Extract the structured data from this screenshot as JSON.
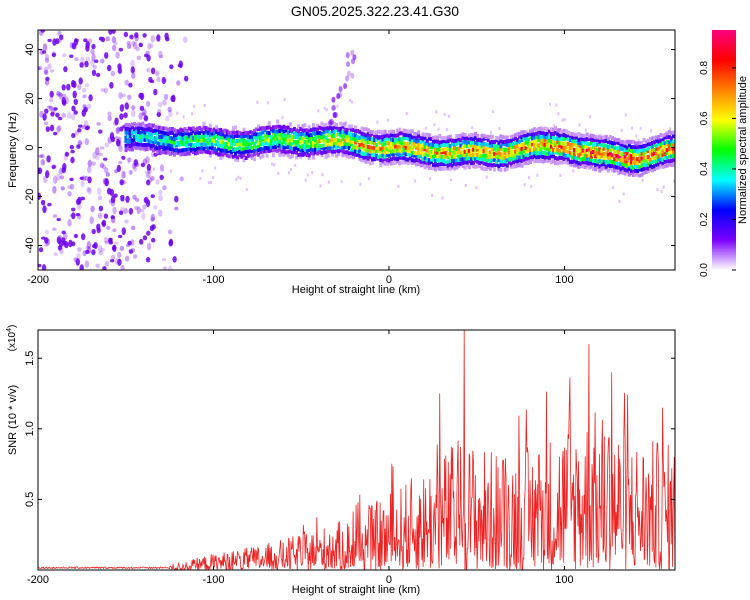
{
  "title": "GN05.2025.322.23.41.G30",
  "chart_data": [
    {
      "type": "heatmap",
      "xlabel": "Height of straight line (km)",
      "ylabel": "Frequency (Hz)",
      "xlim": [
        -200,
        163
      ],
      "ylim": [
        -50,
        48
      ],
      "x_ticks": [
        "-200",
        "-100",
        "0",
        "100"
      ],
      "y_ticks": [
        "40",
        "20",
        "0",
        "-20",
        "-40"
      ],
      "colorbar": {
        "label": "Normalized spectral amplitude",
        "range": [
          0,
          0.95
        ],
        "ticks": [
          "0.0",
          "0.2",
          "0.4",
          "0.6",
          "0.8"
        ],
        "colors": [
          "#ffffff",
          "#7a00ff",
          "#0000ff",
          "#00ffff",
          "#00ff00",
          "#ffff00",
          "#ff8000",
          "#ff0000",
          "#ff0080"
        ]
      },
      "noise_region_x": [
        -200,
        -120
      ],
      "ridge": {
        "x": [
          -145,
          -120,
          -100,
          -80,
          -60,
          -40,
          -20,
          0,
          20,
          40,
          60,
          80,
          100,
          120,
          140,
          163
        ],
        "freq": [
          4,
          3,
          2,
          2,
          3,
          3,
          2,
          0,
          -1,
          -2,
          -2,
          0,
          1,
          -3,
          -4,
          -1
        ],
        "peak_amplitude": [
          0.35,
          0.45,
          0.5,
          0.5,
          0.55,
          0.6,
          0.65,
          0.7,
          0.7,
          0.72,
          0.72,
          0.74,
          0.76,
          0.8,
          0.85,
          0.75
        ]
      },
      "spur": {
        "x": [
          -35,
          -18
        ],
        "freq": [
          8,
          40
        ]
      }
    },
    {
      "type": "line",
      "xlabel": "Height of straight line (km)",
      "ylabel": "SNR (10 * v/v)",
      "y_multiplier": "(x10^4)",
      "xlim": [
        -200,
        163
      ],
      "ylim": [
        0,
        1.7
      ],
      "x_ticks": [
        "-200",
        "-100",
        "0",
        "100"
      ],
      "y_ticks": [
        "0.5",
        "1.0",
        "1.5"
      ],
      "color": "#ee2222",
      "envelope": {
        "x": [
          -200,
          -150,
          -120,
          -100,
          -80,
          -60,
          -40,
          -20,
          0,
          20,
          40,
          60,
          80,
          100,
          120,
          140,
          163
        ],
        "max": [
          0.02,
          0.02,
          0.05,
          0.12,
          0.16,
          0.22,
          0.3,
          0.38,
          0.55,
          0.72,
          0.95,
          0.85,
          0.88,
          1.05,
          1.15,
          0.95,
          0.9
        ]
      },
      "peaks": [
        {
          "x": 29,
          "y": 1.25
        },
        {
          "x": 43,
          "y": 1.7
        },
        {
          "x": 114,
          "y": 1.6
        },
        {
          "x": 127,
          "y": 1.4
        },
        {
          "x": 156,
          "y": 1.15
        }
      ]
    }
  ]
}
